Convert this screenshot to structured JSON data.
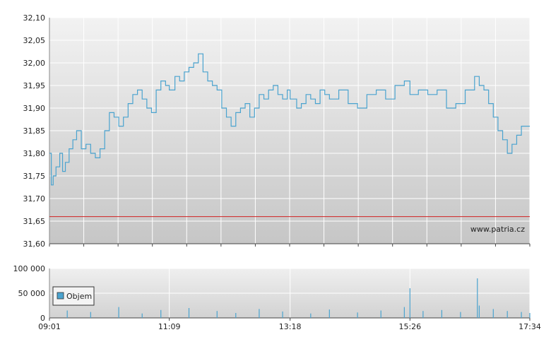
{
  "chart_data": [
    {
      "type": "line",
      "name": "price",
      "y_ticks": [
        "32,10",
        "32,05",
        "32,00",
        "31,95",
        "31,90",
        "31,85",
        "31,80",
        "31,75",
        "31,70",
        "31,65",
        "31,60"
      ],
      "ylim": [
        31.6,
        32.1
      ],
      "x_range": [
        "09:01",
        "17:34"
      ],
      "grid": true,
      "reference_line": {
        "value": 31.66,
        "color": "#d02020"
      },
      "watermark": "www.patria.cz",
      "line_color": "#4aa3cf",
      "series": [
        {
          "x": [
            "09:01",
            "09:03",
            "09:05",
            "09:08",
            "09:12",
            "09:15",
            "09:18",
            "09:22",
            "09:26",
            "09:30",
            "09:35",
            "09:40",
            "09:45",
            "09:50",
            "09:55",
            "10:00",
            "10:05",
            "10:10",
            "10:15",
            "10:20",
            "10:25",
            "10:30",
            "10:35",
            "10:40",
            "10:45",
            "10:50",
            "10:55",
            "11:00",
            "11:05",
            "11:09",
            "11:15",
            "11:20",
            "11:25",
            "11:30",
            "11:35",
            "11:40",
            "11:45",
            "11:50",
            "11:55",
            "12:00",
            "12:05",
            "12:10",
            "12:15",
            "12:20",
            "12:25",
            "12:30",
            "12:35",
            "12:40",
            "12:45",
            "12:50",
            "12:55",
            "13:00",
            "13:05",
            "13:10",
            "13:15",
            "13:18",
            "13:25",
            "13:30",
            "13:35",
            "13:40",
            "13:45",
            "13:50",
            "13:55",
            "14:00",
            "14:10",
            "14:20",
            "14:30",
            "14:40",
            "14:50",
            "15:00",
            "15:10",
            "15:20",
            "15:26",
            "15:35",
            "15:45",
            "15:55",
            "16:05",
            "16:15",
            "16:25",
            "16:35",
            "16:40",
            "16:45",
            "16:50",
            "16:55",
            "17:00",
            "17:05",
            "17:10",
            "17:15",
            "17:20",
            "17:25",
            "17:30",
            "17:34"
          ],
          "values": [
            31.8,
            31.73,
            31.75,
            31.77,
            31.8,
            31.76,
            31.78,
            31.81,
            31.83,
            31.85,
            31.81,
            31.82,
            31.8,
            31.79,
            31.81,
            31.85,
            31.89,
            31.88,
            31.86,
            31.88,
            31.91,
            31.93,
            31.94,
            31.92,
            31.9,
            31.89,
            31.94,
            31.96,
            31.95,
            31.94,
            31.97,
            31.96,
            31.98,
            31.99,
            32.0,
            32.02,
            31.98,
            31.96,
            31.95,
            31.94,
            31.9,
            31.88,
            31.86,
            31.89,
            31.9,
            31.91,
            31.88,
            31.9,
            31.93,
            31.92,
            31.94,
            31.95,
            31.93,
            31.92,
            31.94,
            31.92,
            31.9,
            31.91,
            31.93,
            31.92,
            31.91,
            31.94,
            31.93,
            31.92,
            31.94,
            31.91,
            31.9,
            31.93,
            31.94,
            31.92,
            31.95,
            31.96,
            31.93,
            31.94,
            31.93,
            31.94,
            31.9,
            31.91,
            31.94,
            31.97,
            31.95,
            31.94,
            31.91,
            31.88,
            31.85,
            31.83,
            31.8,
            31.82,
            31.84,
            31.86,
            31.86,
            31.86
          ]
        }
      ]
    },
    {
      "type": "bar",
      "name": "volume",
      "y_ticks": [
        "100 000",
        "50 000",
        "0"
      ],
      "ylim": [
        0,
        100000
      ],
      "x_ticks": [
        "09:01",
        "11:09",
        "13:18",
        "15:26",
        "17:34"
      ],
      "legend": "Objem",
      "bar_color": "#4aa3cf",
      "series": [
        {
          "x": [
            "09:20",
            "09:45",
            "10:15",
            "10:40",
            "11:00",
            "11:30",
            "12:00",
            "12:20",
            "12:45",
            "13:10",
            "13:40",
            "14:00",
            "14:30",
            "14:55",
            "15:20",
            "15:26",
            "15:40",
            "16:00",
            "16:20",
            "16:38",
            "16:40",
            "16:55",
            "17:10",
            "17:25",
            "17:34"
          ],
          "values": [
            15000,
            12000,
            22000,
            9000,
            16000,
            20000,
            14000,
            10000,
            18000,
            13000,
            9000,
            17000,
            11000,
            15000,
            22000,
            60000,
            14000,
            16000,
            12000,
            80000,
            25000,
            18000,
            14000,
            12000,
            10000
          ]
        }
      ]
    }
  ]
}
